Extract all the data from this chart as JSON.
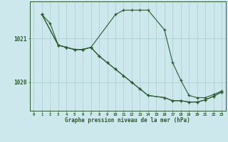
{
  "title": "Graphe pression niveau de la mer (hPa)",
  "bg_color": "#cce8ec",
  "grid_color": "#aacccc",
  "line_color": "#2d5a2d",
  "xlabel_color": "#2d5a2d",
  "ylabel_ticks": [
    1020,
    1021
  ],
  "xlim": [
    -0.5,
    23.5
  ],
  "ylim": [
    1019.35,
    1021.85
  ],
  "series": {
    "s1": {
      "x": [
        1,
        2,
        3,
        4,
        5,
        6,
        7,
        10,
        11,
        12,
        13,
        14,
        16,
        17,
        18,
        19,
        20,
        21,
        22,
        23
      ],
      "y": [
        1021.55,
        1021.35,
        1020.85,
        1020.8,
        1020.75,
        1020.75,
        1020.8,
        1021.55,
        1021.65,
        1021.65,
        1021.65,
        1021.65,
        1021.2,
        1020.45,
        1020.05,
        1019.7,
        1019.65,
        1019.65,
        1019.72,
        1019.8
      ]
    },
    "s2": {
      "x": [
        1,
        3,
        4,
        5,
        6,
        7,
        8,
        9,
        10,
        11,
        12,
        13,
        14,
        16,
        17,
        18,
        19,
        20,
        21,
        22,
        23
      ],
      "y": [
        1021.55,
        1020.85,
        1020.8,
        1020.75,
        1020.75,
        1020.8,
        1020.6,
        1020.45,
        1020.3,
        1020.15,
        1020.0,
        1019.85,
        1019.7,
        1019.65,
        1019.58,
        1019.58,
        1019.55,
        1019.55,
        1019.6,
        1019.68,
        1019.78
      ]
    },
    "s3": {
      "x": [
        1,
        3,
        4,
        5,
        6,
        7,
        8,
        9,
        10,
        11,
        12,
        13,
        14,
        16,
        17,
        18,
        19,
        20,
        21,
        22,
        23
      ],
      "y": [
        1021.55,
        1020.85,
        1020.8,
        1020.75,
        1020.75,
        1020.8,
        1020.6,
        1020.45,
        1020.3,
        1020.15,
        1020.0,
        1019.85,
        1019.7,
        1019.65,
        1019.58,
        1019.58,
        1019.55,
        1019.55,
        1019.6,
        1019.68,
        1019.78
      ]
    }
  }
}
